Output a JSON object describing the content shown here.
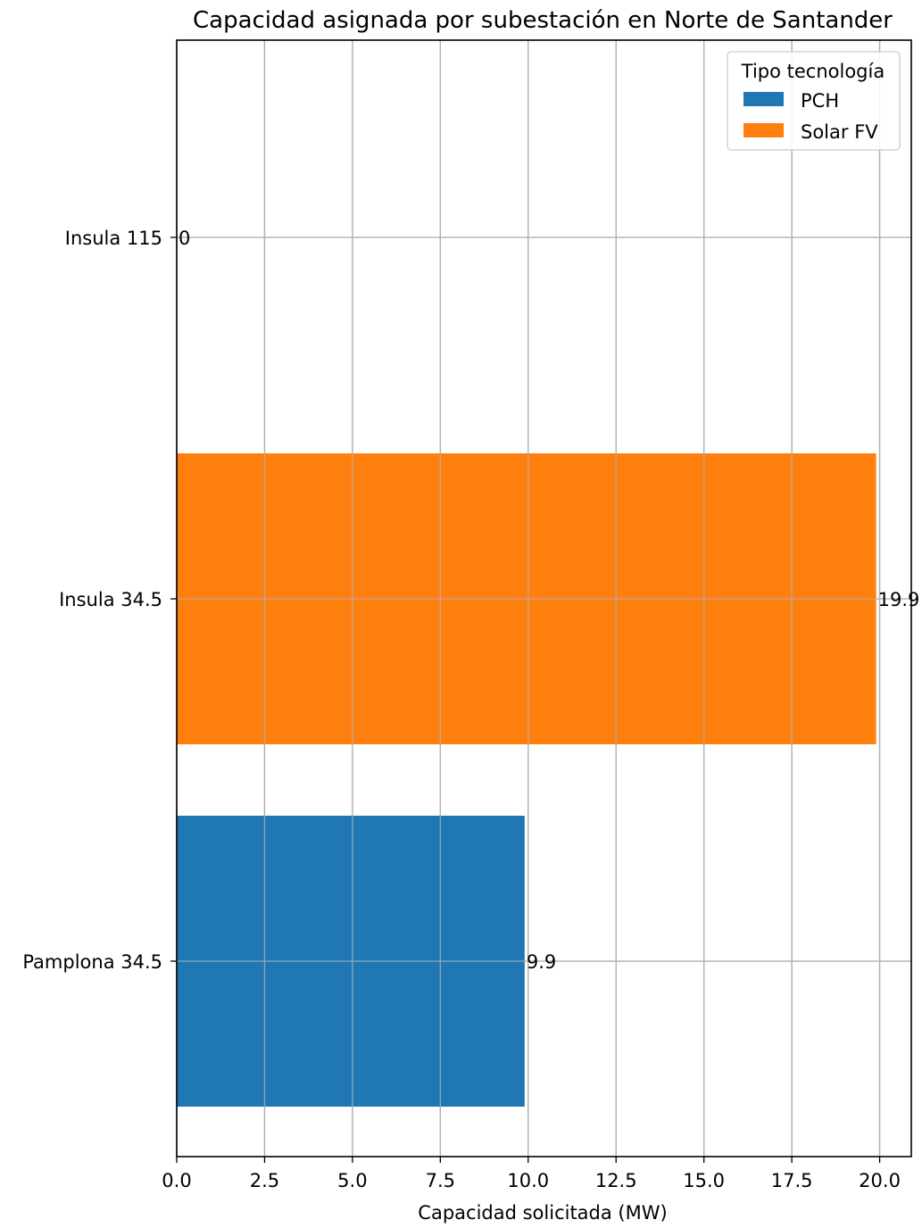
{
  "chart_data": {
    "type": "bar",
    "orientation": "horizontal",
    "title": "Capacidad asignada por subestación en Norte de Santander",
    "xlabel": "Capacidad solicitada (MW)",
    "ylabel": "",
    "xlim": [
      0,
      20.9
    ],
    "xticks": [
      0.0,
      2.5,
      5.0,
      7.5,
      10.0,
      12.5,
      15.0,
      17.5,
      20.0
    ],
    "xtick_labels": [
      "0.0",
      "2.5",
      "5.0",
      "7.5",
      "10.0",
      "12.5",
      "15.0",
      "17.5",
      "20.0"
    ],
    "grid": true,
    "legend_placement": "top-right",
    "legend_title": "Tipo tecnología",
    "categories": [
      "Pamplona 34.5",
      "Insula 34.5",
      "Insula 115"
    ],
    "category_order": "bottom-to-top",
    "series": [
      {
        "name": "PCH",
        "color": "#1f77b4",
        "values": [
          9.9,
          0,
          0
        ]
      },
      {
        "name": "Solar FV",
        "color": "#ff7f0e",
        "values": [
          0,
          19.9,
          0
        ]
      }
    ],
    "data_labels": [
      "9.9",
      "19.9",
      "0"
    ]
  }
}
